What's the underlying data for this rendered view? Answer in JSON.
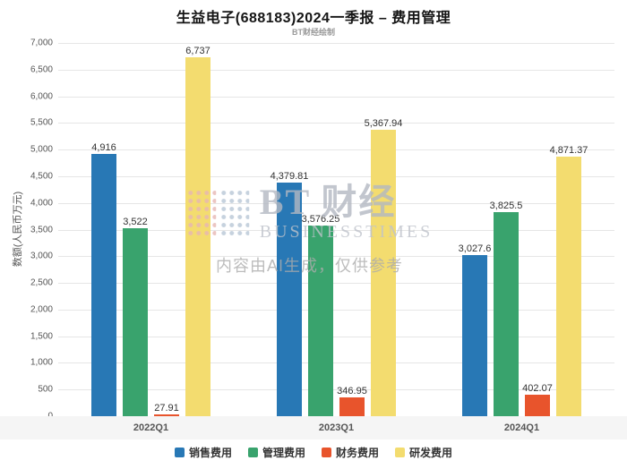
{
  "watermark": {
    "logo_text": "BT 财经",
    "logo_subtext": "BUSINESSTIMES",
    "ai_note": "内容由AI生成，仅供参考"
  },
  "chart_data": {
    "type": "bar",
    "title": "生益电子(688183)2024一季报 – 费用管理",
    "subtitle": "BT财经绘制",
    "ylabel": "数额(人民币万元)",
    "ylim": [
      0,
      7000
    ],
    "ytick_step": 500,
    "ytick_labels": [
      "0",
      "500",
      "1,000",
      "1,500",
      "2,000",
      "2,500",
      "3,000",
      "3,500",
      "4,000",
      "4,500",
      "5,000",
      "5,500",
      "6,000",
      "6,500",
      "7,000"
    ],
    "categories": [
      "2022Q1",
      "2023Q1",
      "2024Q1"
    ],
    "series": [
      {
        "name": "销售费用",
        "color": "#2878b5",
        "values": [
          4916,
          4379.81,
          3027.6
        ],
        "labels": [
          "4,916",
          "4,379.81",
          "3,027.6"
        ]
      },
      {
        "name": "管理费用",
        "color": "#39a36d",
        "values": [
          3522,
          3576.25,
          3825.5
        ],
        "labels": [
          "3,522",
          "3,576.25",
          "3,825.5"
        ]
      },
      {
        "name": "财务费用",
        "color": "#e8542c",
        "values": [
          27.91,
          346.95,
          402.07
        ],
        "labels": [
          "27.91",
          "346.95",
          "402.07"
        ]
      },
      {
        "name": "研发费用",
        "color": "#f3dc6f",
        "values": [
          6737,
          5367.94,
          4871.37
        ],
        "labels": [
          "6,737",
          "5,367.94",
          "4,871.37"
        ]
      }
    ],
    "grid": true,
    "legend_position": "bottom"
  }
}
